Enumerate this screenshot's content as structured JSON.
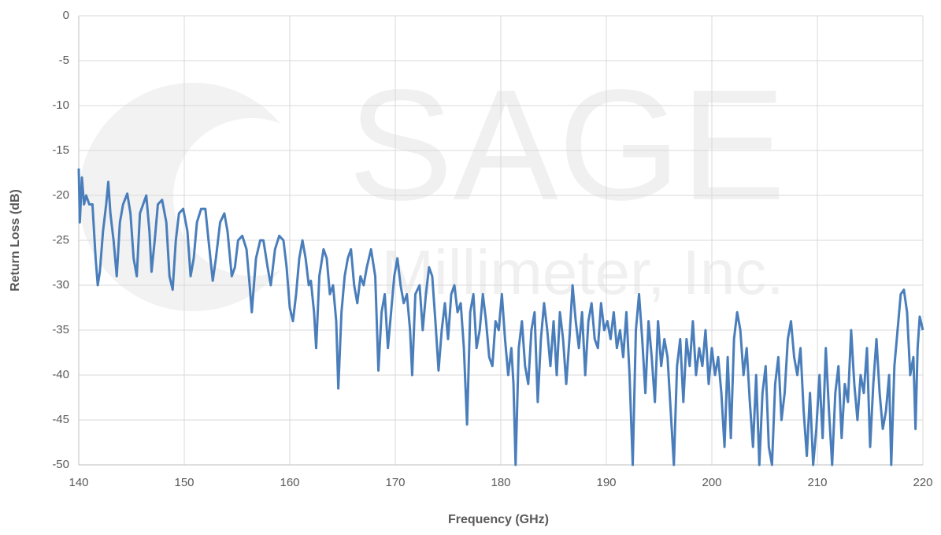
{
  "chart_data": {
    "type": "line",
    "watermark": [
      "SAGE",
      "Millimeter, Inc."
    ],
    "xlabel": "Frequency (GHz)",
    "ylabel": "Return Loss (dB)",
    "xlim": [
      140,
      220
    ],
    "xticks": [
      140,
      150,
      160,
      170,
      180,
      190,
      200,
      210,
      220
    ],
    "ylim": [
      -50,
      0
    ],
    "yticks": [
      0,
      -5,
      -10,
      -15,
      -20,
      -25,
      -30,
      -35,
      -40,
      -45,
      -50
    ],
    "grid": true,
    "series": [
      {
        "color": "#4a7ebb",
        "x": [
          140,
          140.1,
          140.3,
          140.5,
          140.7,
          141,
          141.3,
          141.6,
          141.8,
          142,
          142.3,
          142.6,
          142.8,
          143,
          143.3,
          143.6,
          143.9,
          144.2,
          144.6,
          144.9,
          145.2,
          145.5,
          145.8,
          146.1,
          146.4,
          146.7,
          146.9,
          147.2,
          147.5,
          147.9,
          148.3,
          148.6,
          148.9,
          149.2,
          149.5,
          149.9,
          150.3,
          150.6,
          150.9,
          151.2,
          151.6,
          152,
          152.3,
          152.7,
          153,
          153.4,
          153.8,
          154.1,
          154.5,
          154.8,
          155.1,
          155.5,
          155.9,
          156.2,
          156.4,
          156.8,
          157.2,
          157.5,
          157.9,
          158.2,
          158.6,
          159,
          159.4,
          159.7,
          160,
          160.3,
          160.6,
          160.9,
          161.2,
          161.5,
          161.8,
          162,
          162.3,
          162.5,
          162.8,
          163.2,
          163.5,
          163.8,
          164.1,
          164.4,
          164.6,
          164.9,
          165.2,
          165.5,
          165.8,
          166.1,
          166.4,
          166.7,
          167,
          167.3,
          167.7,
          168.1,
          168.4,
          168.7,
          169,
          169.3,
          169.6,
          169.9,
          170.2,
          170.5,
          170.8,
          171.1,
          171.4,
          171.6,
          171.9,
          172.3,
          172.6,
          172.9,
          173.2,
          173.5,
          173.8,
          174.1,
          174.4,
          174.7,
          175,
          175.3,
          175.6,
          175.9,
          176.2,
          176.5,
          176.8,
          177.1,
          177.4,
          177.7,
          178,
          178.3,
          178.6,
          178.9,
          179.2,
          179.5,
          179.8,
          180.1,
          180.4,
          180.7,
          181,
          181.2,
          181.4,
          181.7,
          182,
          182.3,
          182.6,
          182.9,
          183.2,
          183.5,
          183.8,
          184.1,
          184.4,
          184.7,
          185,
          185.3,
          185.6,
          185.9,
          186.2,
          186.5,
          186.8,
          187.1,
          187.4,
          187.7,
          188,
          188.3,
          188.6,
          188.9,
          189.2,
          189.5,
          189.8,
          190.1,
          190.4,
          190.7,
          191,
          191.3,
          191.6,
          191.9,
          192.2,
          192.5,
          192.8,
          193.1,
          193.4,
          193.7,
          194,
          194.3,
          194.6,
          194.9,
          195.2,
          195.5,
          195.8,
          196.1,
          196.4,
          196.7,
          197,
          197.3,
          197.6,
          197.9,
          198.2,
          198.5,
          198.8,
          199.1,
          199.4,
          199.7,
          200,
          200.3,
          200.6,
          200.9,
          201.2,
          201.5,
          201.8,
          202.1,
          202.4,
          202.7,
          203,
          203.3,
          203.6,
          203.9,
          204.2,
          204.5,
          204.8,
          205.1,
          205.4,
          205.7,
          206,
          206.3,
          206.6,
          206.9,
          207.2,
          207.5,
          207.8,
          208.1,
          208.4,
          208.7,
          209,
          209.3,
          209.6,
          209.9,
          210.2,
          210.5,
          210.8,
          211.1,
          211.4,
          211.7,
          212,
          212.3,
          212.6,
          212.9,
          213.2,
          213.5,
          213.8,
          214.1,
          214.4,
          214.7,
          215,
          215.3,
          215.6,
          215.9,
          216.2,
          216.5,
          216.8,
          217,
          217.3,
          217.6,
          217.9,
          218.2,
          218.5,
          218.8,
          219.1,
          219.3,
          219.5,
          219.7,
          220
        ],
        "values": [
          -17,
          -23,
          -18,
          -21,
          -20,
          -21,
          -21,
          -27,
          -30,
          -28.5,
          -24,
          -21,
          -18.5,
          -22,
          -25,
          -29,
          -23,
          -21,
          -19.8,
          -22,
          -27,
          -29,
          -22,
          -21,
          -20,
          -24,
          -28.5,
          -25,
          -21,
          -20.5,
          -23,
          -29,
          -30.5,
          -25,
          -22,
          -21.5,
          -24,
          -29,
          -27,
          -23,
          -21.5,
          -21.5,
          -25,
          -29.5,
          -27,
          -23,
          -22,
          -24,
          -29,
          -28,
          -25,
          -24.5,
          -26,
          -30,
          -33,
          -27,
          -25,
          -25,
          -28,
          -30,
          -26,
          -24.5,
          -25,
          -28,
          -32.5,
          -34,
          -31,
          -27,
          -25,
          -27,
          -30,
          -29.5,
          -33,
          -37,
          -29,
          -26,
          -27,
          -31,
          -30,
          -34,
          -41.5,
          -33,
          -29,
          -27,
          -26,
          -30,
          -32,
          -29,
          -30,
          -28,
          -26,
          -29,
          -39.5,
          -33,
          -31,
          -37,
          -33,
          -29,
          -27,
          -30,
          -32,
          -31,
          -35,
          -40,
          -31,
          -30,
          -35,
          -31,
          -28,
          -29,
          -34,
          -39.5,
          -35,
          -32,
          -36,
          -31,
          -30,
          -33,
          -32,
          -37,
          -45.5,
          -33,
          -31,
          -37,
          -35,
          -31,
          -34,
          -38,
          -39,
          -34,
          -35,
          -31,
          -36,
          -40,
          -37,
          -41,
          -50,
          -37,
          -34,
          -39,
          -41,
          -35,
          -33,
          -43,
          -36,
          -32,
          -35,
          -39,
          -34,
          -40,
          -33,
          -36,
          -41,
          -36,
          -30,
          -34,
          -37,
          -33,
          -40,
          -34,
          -32,
          -36,
          -37,
          -32,
          -35,
          -34,
          -36,
          -33,
          -37,
          -35,
          -38,
          -33,
          -40,
          -50,
          -35,
          -31,
          -36,
          -42,
          -34,
          -38,
          -43,
          -34,
          -39,
          -36,
          -38,
          -44,
          -50,
          -39,
          -36,
          -43,
          -36,
          -39,
          -34,
          -40,
          -37,
          -39,
          -35,
          -41,
          -37,
          -40,
          -38,
          -42,
          -48,
          -38,
          -47,
          -36,
          -33,
          -35,
          -40,
          -37,
          -43,
          -48,
          -40,
          -50,
          -42,
          -39,
          -48,
          -50,
          -41,
          -38,
          -45,
          -42,
          -36,
          -34,
          -38,
          -40,
          -37,
          -44,
          -49,
          -42,
          -50,
          -46,
          -40,
          -47,
          -37,
          -44,
          -50,
          -42,
          -39,
          -47,
          -41,
          -43,
          -35,
          -41,
          -45,
          -40,
          -42,
          -37,
          -48,
          -41,
          -36,
          -42,
          -46,
          -44,
          -40,
          -50,
          -39,
          -35,
          -31,
          -30.5,
          -33,
          -40,
          -38,
          -46,
          -37,
          -33.5,
          -35
        ]
      }
    ]
  }
}
